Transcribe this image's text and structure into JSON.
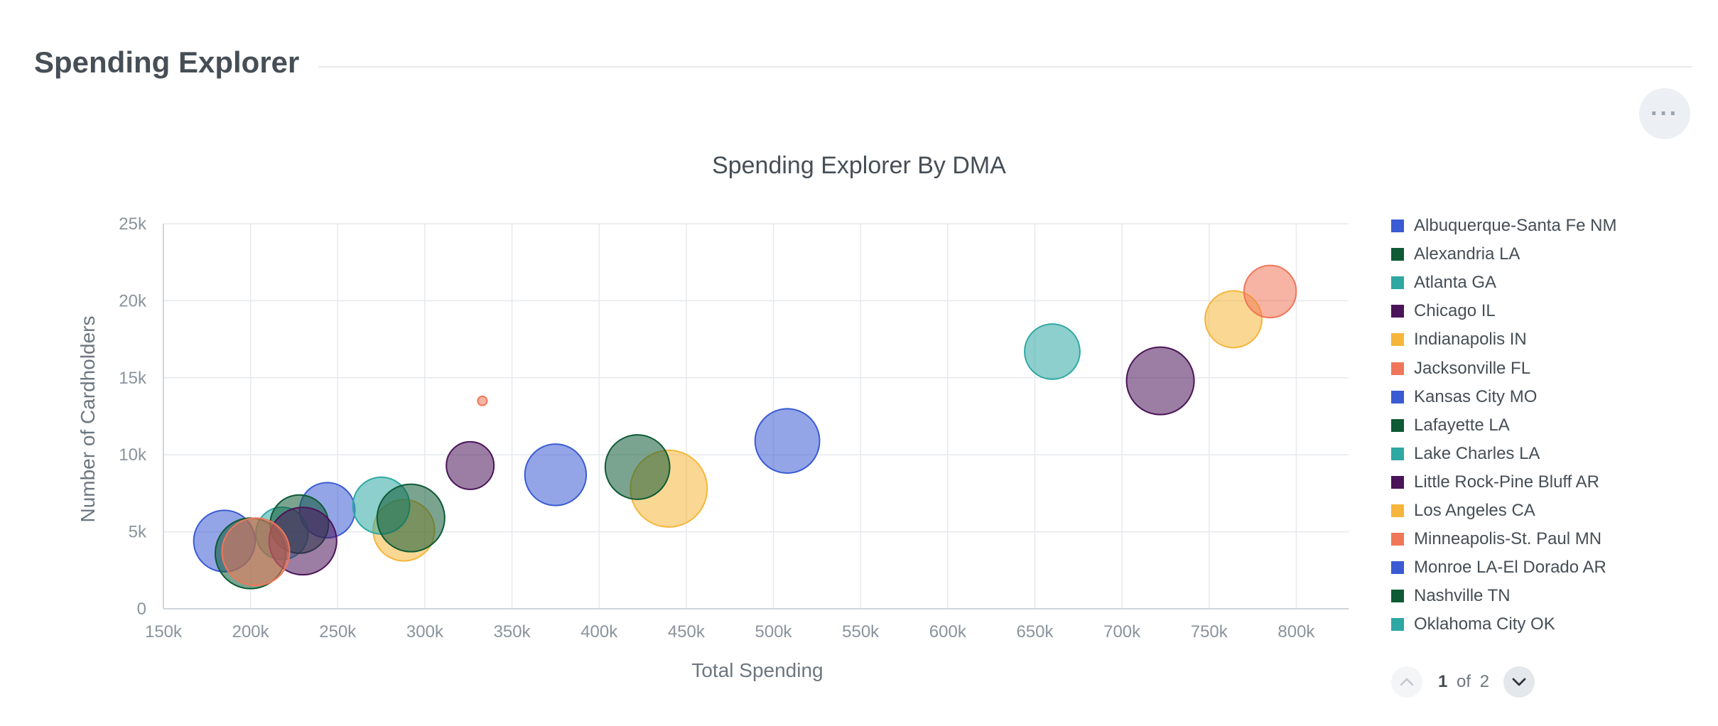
{
  "header": {
    "title": "Spending Explorer",
    "more_icon": "more-horizontal-icon"
  },
  "chart_data": {
    "type": "scatter",
    "title": "Spending Explorer By DMA",
    "xlabel": "Total Spending",
    "ylabel": "Number of Cardholders",
    "xlim": [
      150000,
      830000
    ],
    "ylim": [
      0,
      25000
    ],
    "x_ticks": [
      "150k",
      "200k",
      "250k",
      "300k",
      "350k",
      "400k",
      "450k",
      "500k",
      "550k",
      "600k",
      "650k",
      "700k",
      "750k",
      "800k"
    ],
    "x_tick_values": [
      150000,
      200000,
      250000,
      300000,
      350000,
      400000,
      450000,
      500000,
      550000,
      600000,
      650000,
      700000,
      750000,
      800000
    ],
    "y_ticks": [
      "0",
      "5k",
      "10k",
      "15k",
      "20k",
      "25k"
    ],
    "y_tick_values": [
      0,
      5000,
      10000,
      15000,
      20000,
      25000
    ],
    "grid": true,
    "legend_position": "right",
    "points": [
      {
        "x": 440000,
        "y": 7800,
        "size": 50,
        "color": "#f5b63b"
      },
      {
        "x": 288000,
        "y": 5100,
        "size": 40,
        "color": "#f5b63b"
      },
      {
        "x": 764000,
        "y": 18800,
        "size": 37,
        "color": "#f5b63b"
      },
      {
        "x": 508000,
        "y": 10900,
        "size": 42,
        "color": "#3a5bd3"
      },
      {
        "x": 375000,
        "y": 8700,
        "size": 40,
        "color": "#3a5bd3"
      },
      {
        "x": 244000,
        "y": 6400,
        "size": 36,
        "color": "#3a5bd3"
      },
      {
        "x": 185000,
        "y": 4400,
        "size": 40,
        "color": "#3a5bd3"
      },
      {
        "x": 660000,
        "y": 16700,
        "size": 36,
        "color": "#2ea8a3"
      },
      {
        "x": 275000,
        "y": 6700,
        "size": 37,
        "color": "#2ea8a3"
      },
      {
        "x": 218000,
        "y": 4900,
        "size": 34,
        "color": "#2ea8a3"
      },
      {
        "x": 422000,
        "y": 9200,
        "size": 42,
        "color": "#0e5a35"
      },
      {
        "x": 292000,
        "y": 5900,
        "size": 44,
        "color": "#0e5a35"
      },
      {
        "x": 228000,
        "y": 5500,
        "size": 38,
        "color": "#0e5a35"
      },
      {
        "x": 200000,
        "y": 3600,
        "size": 46,
        "color": "#0e5a35"
      },
      {
        "x": 722000,
        "y": 14800,
        "size": 44,
        "color": "#4b1459"
      },
      {
        "x": 326000,
        "y": 9300,
        "size": 31,
        "color": "#4b1459"
      },
      {
        "x": 230000,
        "y": 4400,
        "size": 44,
        "color": "#4b1459"
      },
      {
        "x": 785000,
        "y": 20600,
        "size": 34,
        "color": "#f07659"
      },
      {
        "x": 333000,
        "y": 13500,
        "size": 6,
        "color": "#f07659"
      },
      {
        "x": 203000,
        "y": 3700,
        "size": 44,
        "color": "#f07659"
      }
    ],
    "legend": [
      {
        "name": "Albuquerque-Santa Fe NM",
        "color": "#3a5bd3"
      },
      {
        "name": "Alexandria LA",
        "color": "#0e5a35"
      },
      {
        "name": "Atlanta GA",
        "color": "#2ea8a3"
      },
      {
        "name": "Chicago IL",
        "color": "#4b1459"
      },
      {
        "name": "Indianapolis IN",
        "color": "#f5b63b"
      },
      {
        "name": "Jacksonville FL",
        "color": "#f07659"
      },
      {
        "name": "Kansas City MO",
        "color": "#3a5bd3"
      },
      {
        "name": "Lafayette LA",
        "color": "#0e5a35"
      },
      {
        "name": "Lake Charles LA",
        "color": "#2ea8a3"
      },
      {
        "name": "Little Rock-Pine Bluff AR",
        "color": "#4b1459"
      },
      {
        "name": "Los Angeles CA",
        "color": "#f5b63b"
      },
      {
        "name": "Minneapolis-St. Paul MN",
        "color": "#f07659"
      },
      {
        "name": "Monroe LA-El Dorado AR",
        "color": "#3a5bd3"
      },
      {
        "name": "Nashville TN",
        "color": "#0e5a35"
      },
      {
        "name": "Oklahoma City OK",
        "color": "#2ea8a3"
      }
    ]
  },
  "pager": {
    "current": "1",
    "of_label": "of",
    "total": "2",
    "prev_icon": "chevron-up-icon",
    "next_icon": "chevron-down-icon"
  }
}
